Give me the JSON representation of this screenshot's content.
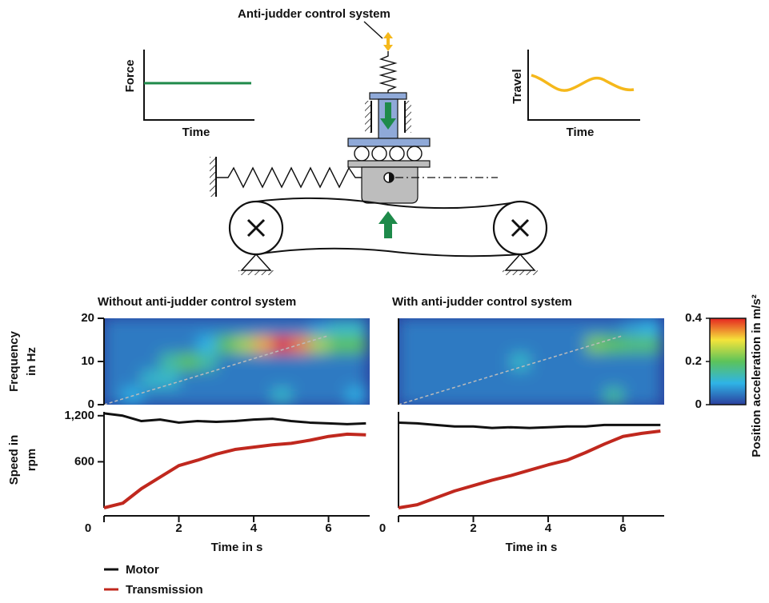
{
  "diagram": {
    "title": "Anti-judder control system",
    "force_plot": {
      "ylabel": "Force",
      "xlabel": "Time"
    },
    "travel_plot": {
      "ylabel": "Travel",
      "xlabel": "Time"
    }
  },
  "chart_data": [
    {
      "type": "heatmap",
      "title": "Without anti-judder control system",
      "ylabel": [
        "Frequency",
        "in Hz"
      ],
      "xlim": [
        0,
        7.1
      ],
      "ylim": [
        0,
        20
      ],
      "yticks": [
        0,
        10,
        20
      ],
      "xbins": [
        0,
        0.5,
        1,
        1.5,
        2,
        2.5,
        3,
        3.5,
        4,
        4.5,
        5,
        5.5,
        6,
        6.5,
        7
      ],
      "ybins": [
        0,
        4,
        8,
        12,
        16,
        20
      ],
      "values": [
        [
          0.05,
          0.1,
          0.05,
          0.05,
          0.05,
          0.05,
          0.05,
          0.05,
          0.05,
          0.12,
          0.05,
          0.05,
          0.05,
          0.1
        ],
        [
          0.05,
          0.05,
          0.12,
          0.12,
          0.05,
          0.05,
          0.05,
          0.05,
          0.05,
          0.05,
          0.05,
          0.05,
          0.05,
          0.05
        ],
        [
          0.05,
          0.05,
          0.05,
          0.15,
          0.2,
          0.15,
          0.05,
          0.05,
          0.05,
          0.05,
          0.05,
          0.05,
          0.05,
          0.05
        ],
        [
          0.05,
          0.05,
          0.05,
          0.05,
          0.05,
          0.1,
          0.2,
          0.25,
          0.33,
          0.4,
          0.35,
          0.25,
          0.2,
          0.2
        ],
        [
          0.05,
          0.05,
          0.05,
          0.05,
          0.05,
          0.05,
          0.05,
          0.05,
          0.05,
          0.05,
          0.05,
          0.08,
          0.12,
          0.12
        ]
      ],
      "order_line": {
        "x": [
          0,
          6
        ],
        "y": [
          0,
          16
        ]
      }
    },
    {
      "type": "heatmap",
      "title": "With anti-judder control system",
      "xlim": [
        0,
        7.1
      ],
      "ylim": [
        0,
        20
      ],
      "xbins": [
        0,
        0.5,
        1,
        1.5,
        2,
        2.5,
        3,
        3.5,
        4,
        4.5,
        5,
        5.5,
        6,
        6.5,
        7
      ],
      "ybins": [
        0,
        4,
        8,
        12,
        16,
        20
      ],
      "values": [
        [
          0.05,
          0.05,
          0.05,
          0.05,
          0.05,
          0.05,
          0.05,
          0.05,
          0.05,
          0.05,
          0.05,
          0.15,
          0.05,
          0.05
        ],
        [
          0.05,
          0.05,
          0.05,
          0.05,
          0.05,
          0.05,
          0.05,
          0.05,
          0.05,
          0.05,
          0.05,
          0.05,
          0.05,
          0.05
        ],
        [
          0.05,
          0.05,
          0.05,
          0.05,
          0.05,
          0.05,
          0.12,
          0.05,
          0.05,
          0.05,
          0.05,
          0.05,
          0.05,
          0.05
        ],
        [
          0.05,
          0.05,
          0.05,
          0.05,
          0.05,
          0.05,
          0.05,
          0.05,
          0.05,
          0.05,
          0.22,
          0.2,
          0.18,
          0.18
        ],
        [
          0.05,
          0.05,
          0.05,
          0.05,
          0.05,
          0.05,
          0.05,
          0.05,
          0.05,
          0.05,
          0.05,
          0.05,
          0.08,
          0.1
        ]
      ],
      "order_line": {
        "x": [
          0,
          6
        ],
        "y": [
          0,
          16
        ]
      }
    },
    {
      "type": "line",
      "ylabel": [
        "Speed in",
        "rpm"
      ],
      "xlabel": "Time in s",
      "xlim": [
        0,
        7.1
      ],
      "ylim": [
        0,
        1250
      ],
      "xticks": [
        0,
        2,
        4,
        6
      ],
      "yticks": [
        {
          "value": 600,
          "label": "600"
        },
        {
          "value": 1200,
          "label": "1,200"
        }
      ],
      "x": [
        0,
        0.5,
        1,
        1.5,
        2,
        2.5,
        3,
        3.5,
        4,
        4.5,
        5,
        5.5,
        6,
        6.5,
        7
      ],
      "series": [
        {
          "name": "Motor",
          "color": "#111111",
          "values": [
            1230,
            1200,
            1130,
            1150,
            1110,
            1130,
            1120,
            1130,
            1150,
            1160,
            1130,
            1110,
            1100,
            1090,
            1100
          ]
        },
        {
          "name": "Transmission",
          "color": "#c0281e",
          "values": [
            0,
            60,
            250,
            400,
            550,
            620,
            700,
            760,
            790,
            820,
            840,
            880,
            930,
            960,
            950
          ]
        }
      ]
    },
    {
      "type": "line",
      "xlabel": "Time in s",
      "xlim": [
        0,
        7.1
      ],
      "ylim": [
        0,
        1250
      ],
      "xticks": [
        0,
        2,
        4,
        6
      ],
      "x": [
        0,
        0.5,
        1,
        1.5,
        2,
        2.5,
        3,
        3.5,
        4,
        4.5,
        5,
        5.5,
        6,
        6.5,
        7
      ],
      "series": [
        {
          "name": "Motor",
          "color": "#111111",
          "values": [
            1110,
            1100,
            1080,
            1060,
            1060,
            1040,
            1050,
            1040,
            1050,
            1060,
            1060,
            1080,
            1080,
            1080,
            1080
          ]
        },
        {
          "name": "Transmission",
          "color": "#c0281e",
          "values": [
            0,
            40,
            130,
            220,
            290,
            360,
            420,
            490,
            560,
            620,
            720,
            830,
            930,
            970,
            1000
          ]
        }
      ]
    },
    {
      "type": "colorbar",
      "label": "Position acceleration in m/s²",
      "lim": [
        0,
        0.4
      ],
      "ticks": [
        0,
        0.2,
        0.4
      ],
      "colors": [
        "#2b3f9e",
        "#2fb4e6",
        "#5cc35a",
        "#f5e43a",
        "#e52521"
      ]
    }
  ]
}
